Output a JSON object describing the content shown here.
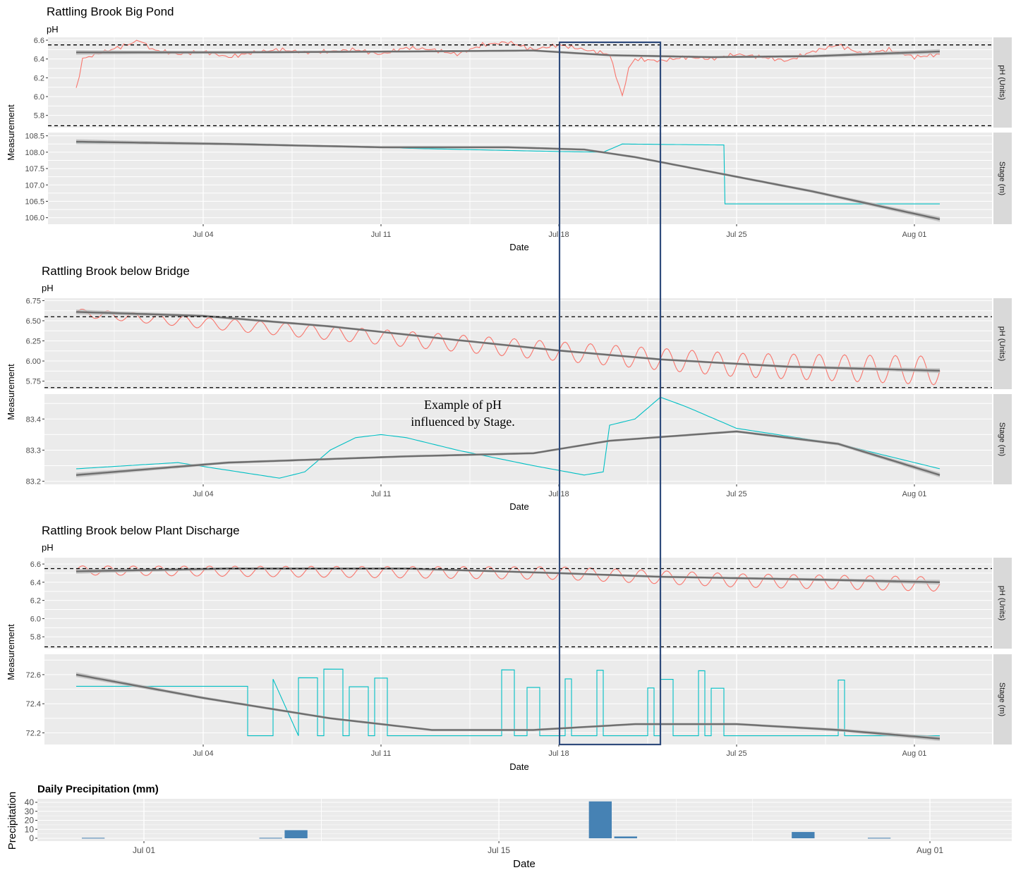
{
  "colors": {
    "ph_line": "#f8766d",
    "stage_line": "#00bfc4",
    "smooth_line": "#6e6e6e",
    "smooth_band": "#bdbdbd",
    "panel_bg": "#ebebeb",
    "grid": "#ffffff",
    "strip_bg": "#d9d9d9",
    "highlight_box": "#2f4b7c",
    "precip_bar": "#4682b4"
  },
  "annotation": {
    "line1": "Example of pH",
    "line2": "influenced by Stage."
  },
  "chart_data": [
    {
      "type": "line",
      "title": "Rattling Brook Big Pond",
      "subtitle": "pH",
      "xlabel": "Date",
      "ylabel": "Measurement",
      "x_range": [
        "2023-06-29",
        "2023-08-03"
      ],
      "x_ticks": [
        "Jul 04",
        "Jul 11",
        "Jul 18",
        "Jul 25",
        "Aug 01"
      ],
      "facets": [
        {
          "strip": "pH (Units)",
          "ylim": [
            5.67,
            6.63
          ],
          "y_ticks": [
            "6.6",
            "6.4",
            "6.2",
            "6.0",
            "5.8"
          ],
          "y_tick_values": [
            6.6,
            6.4,
            6.2,
            6.0,
            5.8
          ],
          "hlines": [
            6.55,
            5.69
          ],
          "raw": [
            [
              "2023-06-29",
              6.07
            ],
            [
              "2023-06-29T06:00",
              6.4
            ],
            [
              "2023-06-30",
              6.47
            ],
            [
              "2023-07-01",
              6.55
            ],
            [
              "2023-07-01T12:00",
              6.6
            ],
            [
              "2023-07-02",
              6.5
            ],
            [
              "2023-07-03",
              6.45
            ],
            [
              "2023-07-04",
              6.48
            ],
            [
              "2023-07-05",
              6.42
            ],
            [
              "2023-07-06",
              6.47
            ],
            [
              "2023-07-07",
              6.5
            ],
            [
              "2023-07-08",
              6.47
            ],
            [
              "2023-07-09",
              6.48
            ],
            [
              "2023-07-10",
              6.5
            ],
            [
              "2023-07-11",
              6.45
            ],
            [
              "2023-07-12",
              6.52
            ],
            [
              "2023-07-13",
              6.5
            ],
            [
              "2023-07-14",
              6.45
            ],
            [
              "2023-07-15",
              6.55
            ],
            [
              "2023-07-16",
              6.58
            ],
            [
              "2023-07-17",
              6.5
            ],
            [
              "2023-07-18",
              6.55
            ],
            [
              "2023-07-19",
              6.5
            ],
            [
              "2023-07-20",
              6.45
            ],
            [
              "2023-07-20T12:00",
              6.0
            ],
            [
              "2023-07-20T18:00",
              6.3
            ],
            [
              "2023-07-21",
              6.4
            ],
            [
              "2023-07-22",
              6.38
            ],
            [
              "2023-07-23",
              6.42
            ],
            [
              "2023-07-24",
              6.4
            ],
            [
              "2023-07-25",
              6.45
            ],
            [
              "2023-07-26",
              6.42
            ],
            [
              "2023-07-27",
              6.38
            ],
            [
              "2023-07-28",
              6.48
            ],
            [
              "2023-07-29",
              6.55
            ],
            [
              "2023-07-30",
              6.45
            ],
            [
              "2023-07-31",
              6.5
            ],
            [
              "2023-08-01",
              6.42
            ],
            [
              "2023-08-02",
              6.45
            ]
          ],
          "smooth": [
            [
              "2023-06-29",
              6.47
            ],
            [
              "2023-07-05",
              6.47
            ],
            [
              "2023-07-12",
              6.48
            ],
            [
              "2023-07-17",
              6.49
            ],
            [
              "2023-07-20",
              6.44
            ],
            [
              "2023-07-24",
              6.42
            ],
            [
              "2023-07-28",
              6.43
            ],
            [
              "2023-08-02",
              6.48
            ]
          ]
        },
        {
          "strip": "Stage (m)",
          "ylim": [
            105.8,
            108.6
          ],
          "y_ticks": [
            "108.5",
            "108.0",
            "107.5",
            "107.0",
            "106.5",
            "106.0"
          ],
          "y_tick_values": [
            108.5,
            108.0,
            107.5,
            107.0,
            106.5,
            106.0
          ],
          "hlines": [],
          "raw": [
            [
              "2023-06-29",
              108.3
            ],
            [
              "2023-07-06",
              108.25
            ],
            [
              "2023-07-12",
              108.12
            ],
            [
              "2023-07-18",
              108.02
            ],
            [
              "2023-07-19T18:00",
              108.0
            ],
            [
              "2023-07-20T12:00",
              108.25
            ],
            [
              "2023-07-24T12:00",
              108.22
            ],
            [
              "2023-07-24T13:00",
              106.42
            ],
            [
              "2023-07-29",
              106.42
            ],
            [
              "2023-08-02",
              106.42
            ]
          ],
          "smooth": [
            [
              "2023-06-29",
              108.32
            ],
            [
              "2023-07-05",
              108.25
            ],
            [
              "2023-07-11",
              108.15
            ],
            [
              "2023-07-16",
              108.15
            ],
            [
              "2023-07-19",
              108.08
            ],
            [
              "2023-07-21",
              107.85
            ],
            [
              "2023-07-24",
              107.4
            ],
            [
              "2023-07-28",
              106.8
            ],
            [
              "2023-08-02",
              105.95
            ]
          ]
        }
      ]
    },
    {
      "type": "line",
      "title": "Rattling Brook below Bridge",
      "subtitle": "pH",
      "xlabel": "Date",
      "ylabel": "Measurement",
      "x_range": [
        "2023-06-29",
        "2023-08-03"
      ],
      "x_ticks": [
        "Jul 04",
        "Jul 11",
        "Jul 18",
        "Jul 25",
        "Aug 01"
      ],
      "facets": [
        {
          "strip": "pH (Units)",
          "ylim": [
            5.65,
            6.78
          ],
          "y_ticks": [
            "6.75",
            "6.50",
            "6.25",
            "6.00",
            "5.75"
          ],
          "y_tick_values": [
            6.75,
            6.5,
            6.25,
            6.0,
            5.75
          ],
          "hlines": [
            6.55,
            5.67
          ],
          "raw_diurnal": {
            "baseline": [
              [
                "2023-06-29",
                6.6
              ],
              [
                "2023-07-18",
                6.12
              ],
              [
                "2023-07-25",
                5.95
              ],
              [
                "2023-08-02",
                5.88
              ]
            ],
            "amplitude": [
              [
                "2023-06-29",
                0.05
              ],
              [
                "2023-07-18",
                0.12
              ],
              [
                "2023-08-02",
                0.18
              ]
            ]
          },
          "smooth": [
            [
              "2023-06-29",
              6.61
            ],
            [
              "2023-07-04",
              6.56
            ],
            [
              "2023-07-09",
              6.43
            ],
            [
              "2023-07-14",
              6.26
            ],
            [
              "2023-07-18",
              6.13
            ],
            [
              "2023-07-22",
              6.02
            ],
            [
              "2023-07-27",
              5.93
            ],
            [
              "2023-08-02",
              5.88
            ]
          ]
        },
        {
          "strip": "Stage (m)",
          "ylim": [
            83.19,
            83.48
          ],
          "y_ticks": [
            "83.4",
            "83.3",
            "83.2"
          ],
          "y_tick_values": [
            83.4,
            83.3,
            83.2
          ],
          "hlines": [],
          "raw": [
            [
              "2023-06-29",
              83.24
            ],
            [
              "2023-07-03",
              83.26
            ],
            [
              "2023-07-07",
              83.21
            ],
            [
              "2023-07-08",
              83.23
            ],
            [
              "2023-07-09",
              83.3
            ],
            [
              "2023-07-10",
              83.34
            ],
            [
              "2023-07-11",
              83.35
            ],
            [
              "2023-07-12",
              83.34
            ],
            [
              "2023-07-14",
              83.3
            ],
            [
              "2023-07-17",
              83.25
            ],
            [
              "2023-07-19",
              83.22
            ],
            [
              "2023-07-19T18:00",
              83.23
            ],
            [
              "2023-07-20",
              83.38
            ],
            [
              "2023-07-21",
              83.4
            ],
            [
              "2023-07-22",
              83.47
            ],
            [
              "2023-07-23",
              83.44
            ],
            [
              "2023-07-25",
              83.37
            ],
            [
              "2023-07-29",
              83.32
            ],
            [
              "2023-08-02",
              83.24
            ]
          ],
          "smooth": [
            [
              "2023-06-29",
              83.22
            ],
            [
              "2023-07-05",
              83.26
            ],
            [
              "2023-07-12",
              83.28
            ],
            [
              "2023-07-17",
              83.29
            ],
            [
              "2023-07-20",
              83.33
            ],
            [
              "2023-07-25",
              83.36
            ],
            [
              "2023-07-29",
              83.32
            ],
            [
              "2023-08-02",
              83.22
            ]
          ]
        }
      ]
    },
    {
      "type": "line",
      "title": "Rattling Brook below Plant Discharge",
      "subtitle": "pH",
      "xlabel": "Date",
      "ylabel": "Measurement",
      "x_range": [
        "2023-06-29",
        "2023-08-03"
      ],
      "x_ticks": [
        "Jul 04",
        "Jul 11",
        "Jul 18",
        "Jul 25",
        "Aug 01"
      ],
      "facets": [
        {
          "strip": "pH (Units)",
          "ylim": [
            5.67,
            6.67
          ],
          "y_ticks": [
            "6.6",
            "6.4",
            "6.2",
            "6.0",
            "5.8"
          ],
          "y_tick_values": [
            6.6,
            6.4,
            6.2,
            6.0,
            5.8
          ],
          "hlines": [
            6.55,
            5.69
          ],
          "raw_diurnal": {
            "baseline": [
              [
                "2023-06-29",
                6.53
              ],
              [
                "2023-07-18",
                6.5
              ],
              [
                "2023-07-25",
                6.42
              ],
              [
                "2023-08-02",
                6.38
              ]
            ],
            "amplitude": [
              [
                "2023-06-29",
                0.05
              ],
              [
                "2023-07-18",
                0.07
              ],
              [
                "2023-08-02",
                0.08
              ]
            ]
          },
          "smooth": [
            [
              "2023-06-29",
              6.52
            ],
            [
              "2023-07-05",
              6.55
            ],
            [
              "2023-07-12",
              6.55
            ],
            [
              "2023-07-18",
              6.5
            ],
            [
              "2023-07-22",
              6.46
            ],
            [
              "2023-07-28",
              6.43
            ],
            [
              "2023-08-02",
              6.4
            ]
          ]
        },
        {
          "strip": "Stage (m)",
          "ylim": [
            72.12,
            72.74
          ],
          "y_ticks": [
            "72.6",
            "72.4",
            "72.2"
          ],
          "y_tick_values": [
            72.6,
            72.4,
            72.2
          ],
          "hlines": [],
          "high_base": [
            [
              "2023-06-29",
              72.52
            ],
            [
              "2023-07-06",
              72.52
            ],
            [
              "2023-08-02",
              72.5
            ]
          ],
          "low_base": 72.18,
          "pulses": [
            [
              "2023-07-05T18:00",
              "2023-07-06T18:00"
            ],
            [
              "2023-07-07T18:00",
              "2023-07-08T12:00"
            ],
            [
              "2023-07-08T18:00",
              "2023-07-09T12:00"
            ],
            [
              "2023-07-09T18:00",
              "2023-07-10T12:00"
            ],
            [
              "2023-07-10T18:00",
              "2023-07-11T06:00"
            ],
            [
              "2023-07-15T18:00",
              "2023-07-16T06:00"
            ],
            [
              "2023-07-16T18:00",
              "2023-07-17T06:00"
            ],
            [
              "2023-07-18T06:00",
              "2023-07-18T12:00"
            ],
            [
              "2023-07-19T12:00",
              "2023-07-19T18:00"
            ],
            [
              "2023-07-21T12:00",
              "2023-07-21T18:00"
            ],
            [
              "2023-07-22",
              "2023-07-22T12:00"
            ],
            [
              "2023-07-23T12:00",
              "2023-07-23T18:00"
            ],
            [
              "2023-07-24",
              "2023-07-24T12:00"
            ],
            [
              "2023-07-29",
              "2023-07-29T06:00"
            ]
          ],
          "smooth": [
            [
              "2023-06-29",
              72.6
            ],
            [
              "2023-07-04",
              72.44
            ],
            [
              "2023-07-09",
              72.3
            ],
            [
              "2023-07-13",
              72.22
            ],
            [
              "2023-07-17",
              72.22
            ],
            [
              "2023-07-21",
              72.26
            ],
            [
              "2023-07-25",
              72.26
            ],
            [
              "2023-07-29",
              72.22
            ],
            [
              "2023-08-02",
              72.16
            ]
          ]
        }
      ]
    },
    {
      "type": "bar",
      "title": "Daily Precipitation (mm)",
      "xlabel": "Date",
      "ylabel": "Precipitation",
      "x_range": [
        "2023-06-26",
        "2023-08-05"
      ],
      "x_ticks": [
        "Jul 01",
        "Jul 15",
        "Aug 01"
      ],
      "ylim": [
        0,
        44
      ],
      "y_ticks": [
        "40",
        "30",
        "20",
        "10",
        "0"
      ],
      "y_tick_values": [
        40,
        30,
        20,
        10,
        0
      ],
      "categories": [
        "2023-06-29",
        "2023-07-06",
        "2023-07-07",
        "2023-07-19",
        "2023-07-20",
        "2023-07-27",
        "2023-07-30"
      ],
      "values": [
        0.5,
        0.5,
        9,
        41,
        2,
        7,
        0.5
      ]
    }
  ]
}
